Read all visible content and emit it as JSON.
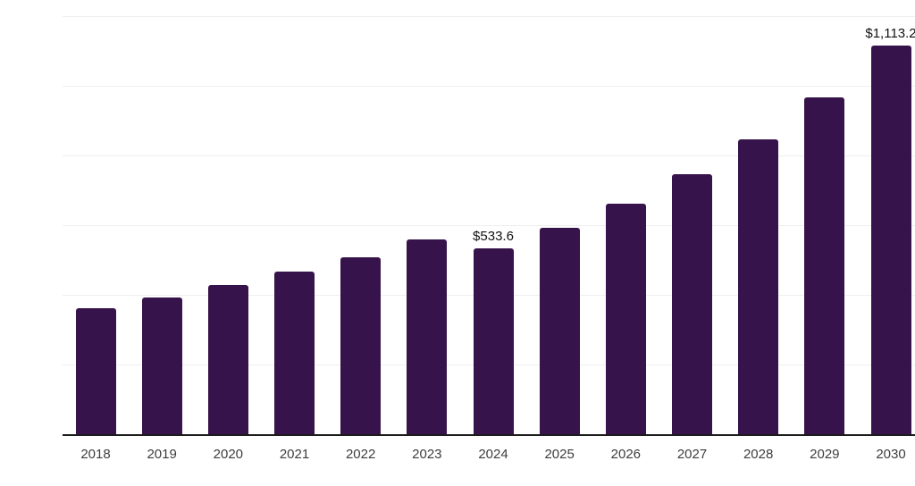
{
  "chart_data": {
    "type": "bar",
    "title": "",
    "xlabel": "",
    "ylabel": "",
    "categories": [
      "2018",
      "2019",
      "2020",
      "2021",
      "2022",
      "2023",
      "2024",
      "2025",
      "2026",
      "2027",
      "2028",
      "2029",
      "2030"
    ],
    "values": [
      361.1,
      391.8,
      427.7,
      466.1,
      507.1,
      558.3,
      533.6,
      591.6,
      660.7,
      745.3,
      845.1,
      965.5,
      1113.2
    ],
    "annotations": [
      {
        "category": "2024",
        "text": "$533.6"
      },
      {
        "category": "2030",
        "text": "$1,113.2"
      }
    ],
    "ylim": [
      0,
      1200
    ],
    "gridline_step": 200,
    "grid": true,
    "y_tick_labels_visible": false,
    "legend": "none",
    "colors": {
      "bar": "#36134B",
      "axis": "#1c1c1c",
      "grid": "#efefef",
      "tick_label": "#3d3d3d",
      "annotation": "#111111",
      "background": "#ffffff"
    }
  }
}
